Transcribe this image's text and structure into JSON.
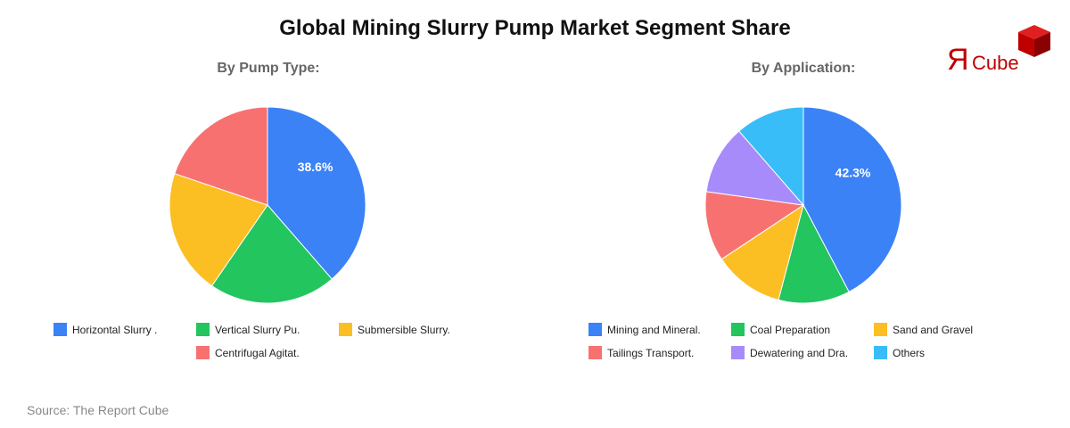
{
  "header": {
    "title": "Global Mining Slurry Pump Market Segment Share"
  },
  "logo": {
    "text_r": "Я",
    "text_cube": "Cube",
    "color": "#c00000"
  },
  "source": "Source: The Report Cube",
  "chart_data": [
    {
      "type": "pie",
      "title": "By Pump Type:",
      "categories": [
        "Horizontal Slurry .",
        "Vertical Slurry Pu.",
        "Submersible Slurry.",
        "Centrifugal Agitat."
      ],
      "values": [
        38.6,
        21.0,
        20.6,
        19.8
      ],
      "colors": [
        "#3b82f6",
        "#22c55e",
        "#fbbf24",
        "#f87171"
      ],
      "data_labels": [
        "38.6%",
        "",
        "",
        ""
      ],
      "legend_position": "bottom"
    },
    {
      "type": "pie",
      "title": "By Application:",
      "categories": [
        "Mining and Mineral.",
        "Coal Preparation",
        "Sand and Gravel",
        "Tailings Transport.",
        "Dewatering and Dra.",
        "Others"
      ],
      "values": [
        42.3,
        11.8,
        11.6,
        11.5,
        11.4,
        11.4
      ],
      "colors": [
        "#3b82f6",
        "#22c55e",
        "#fbbf24",
        "#f87171",
        "#a78bfa",
        "#38bdf8"
      ],
      "data_labels": [
        "42.3%",
        "",
        "",
        "",
        "",
        ""
      ],
      "legend_position": "bottom"
    }
  ]
}
